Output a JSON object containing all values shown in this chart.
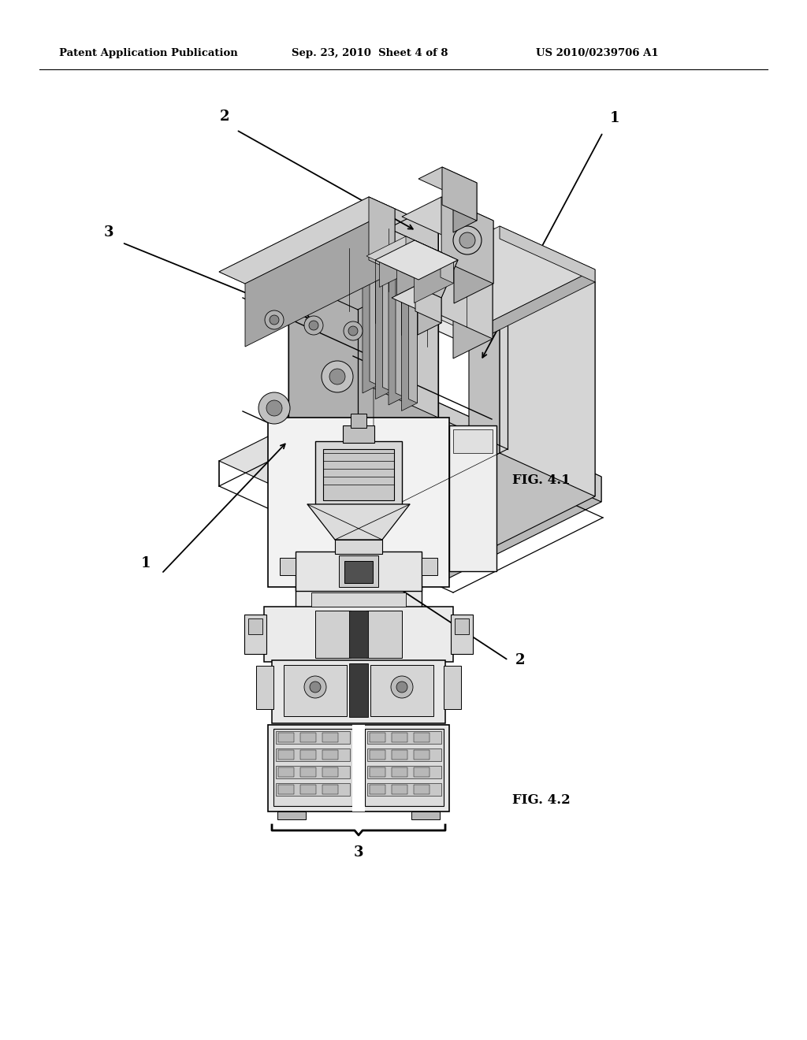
{
  "background_color": "#ffffff",
  "header_text": "Patent Application Publication",
  "header_date": "Sep. 23, 2010  Sheet 4 of 8",
  "header_patent": "US 2010/0239706 A1",
  "fig1_label": "FIG. 4.1",
  "fig2_label": "FIG. 4.2",
  "text_color": "#000000",
  "line_color": "#000000"
}
